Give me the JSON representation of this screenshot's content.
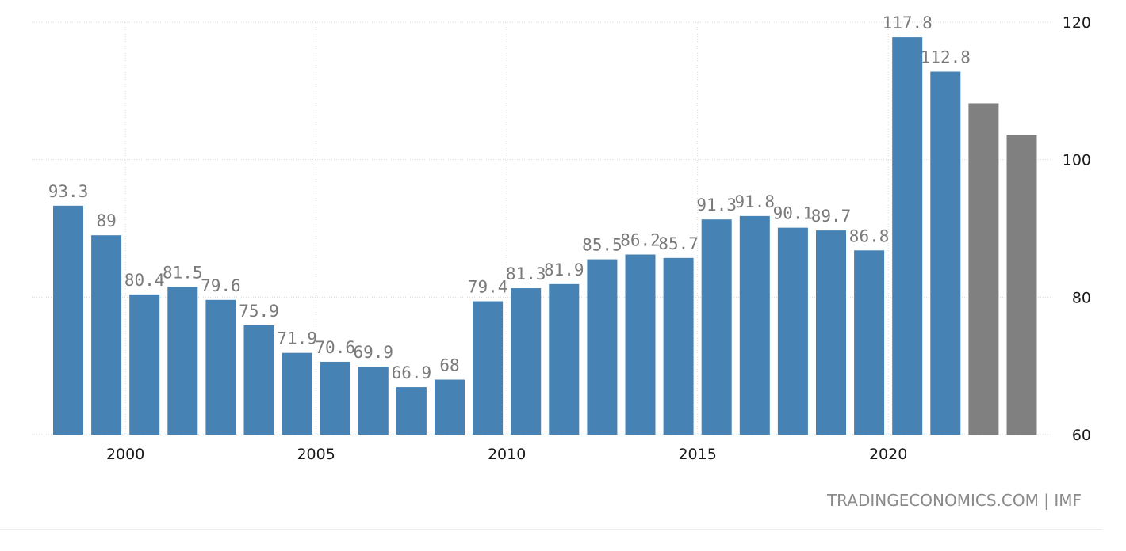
{
  "chart_data": {
    "type": "bar",
    "x": [
      1998,
      1999,
      2000,
      2001,
      2002,
      2003,
      2004,
      2005,
      2006,
      2007,
      2008,
      2009,
      2010,
      2011,
      2012,
      2013,
      2014,
      2015,
      2016,
      2017,
      2018,
      2019,
      2020,
      2021,
      2022,
      2023
    ],
    "values": [
      93.3,
      89,
      80.4,
      81.5,
      79.6,
      75.9,
      71.9,
      70.6,
      69.9,
      66.9,
      68,
      79.4,
      81.3,
      81.9,
      85.5,
      86.2,
      85.7,
      91.3,
      91.8,
      90.1,
      89.7,
      86.8,
      117.8,
      112.8,
      108.2,
      103.6
    ],
    "labels": [
      "93.3",
      "89",
      "80.4",
      "81.5",
      "79.6",
      "75.9",
      "71.9",
      "70.6",
      "69.9",
      "66.9",
      "68",
      "79.4",
      "81.3",
      "81.9",
      "85.5",
      "86.2",
      "85.7",
      "91.3",
      "91.8",
      "90.1",
      "89.7",
      "86.8",
      "117.8",
      "112.8",
      "",
      ""
    ],
    "forecast": [
      false,
      false,
      false,
      false,
      false,
      false,
      false,
      false,
      false,
      false,
      false,
      false,
      false,
      false,
      false,
      false,
      false,
      false,
      false,
      false,
      false,
      false,
      false,
      false,
      true,
      true
    ],
    "x_ticks": [
      "2000",
      "2005",
      "2010",
      "2015",
      "2020"
    ],
    "x_tick_years": [
      2000,
      2005,
      2010,
      2015,
      2020
    ],
    "y_ticks": [
      "60",
      "80",
      "100",
      "120"
    ],
    "ylim": [
      60,
      120
    ],
    "grid": true,
    "colors": {
      "actual": "#4682b4",
      "forecast": "#808080"
    }
  },
  "source": "TRADINGECONOMICS.COM  |  IMF"
}
